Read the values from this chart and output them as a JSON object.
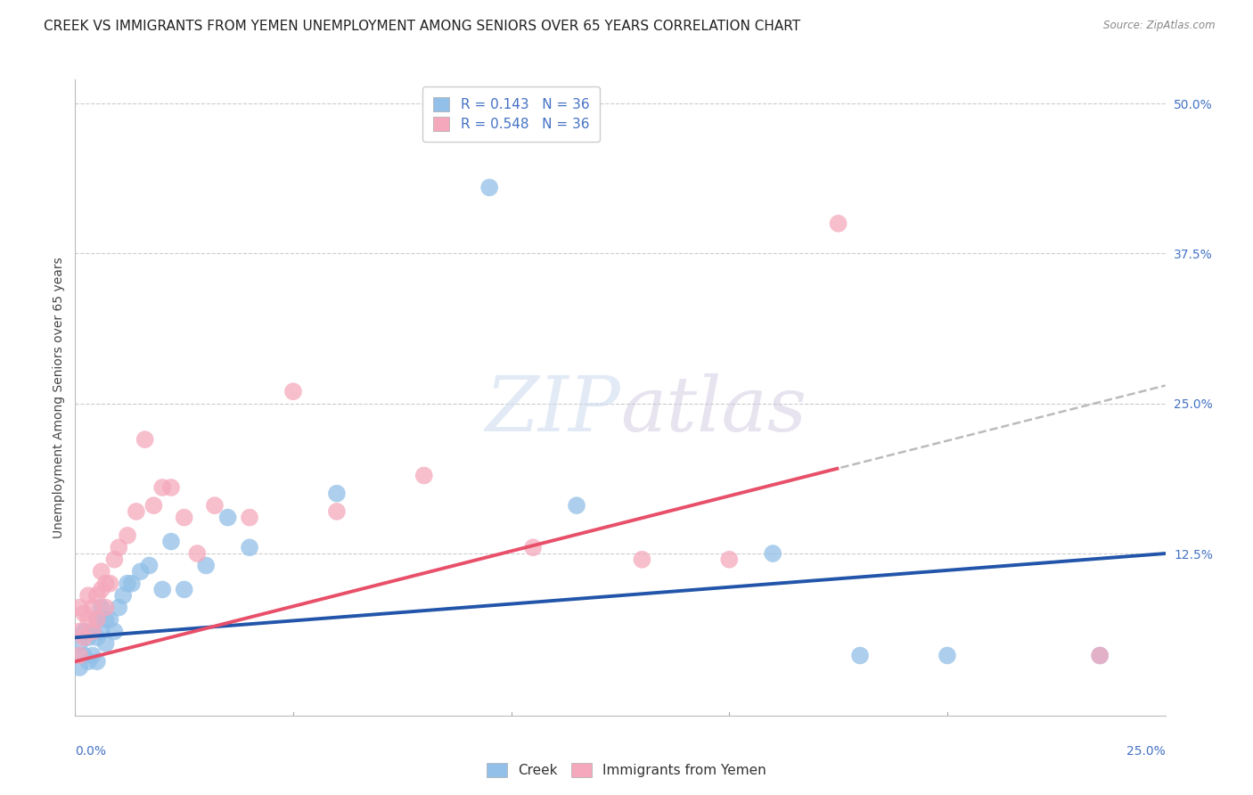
{
  "title": "CREEK VS IMMIGRANTS FROM YEMEN UNEMPLOYMENT AMONG SENIORS OVER 65 YEARS CORRELATION CHART",
  "source": "Source: ZipAtlas.com",
  "ylabel": "Unemployment Among Seniors over 65 years",
  "xlim": [
    0.0,
    0.25
  ],
  "ylim": [
    -0.01,
    0.52
  ],
  "r_creek": 0.143,
  "n_creek": 36,
  "r_yemen": 0.548,
  "n_yemen": 36,
  "creek_color": "#92C0E8",
  "yemen_color": "#F5A8BC",
  "blue_line_color": "#2255AA",
  "pink_line_color": "#E8506A",
  "dash_line_color": "#BBBBBB",
  "grid_color": "#CCCCCC",
  "background_color": "#FFFFFF",
  "title_fontsize": 11,
  "axis_fontsize": 10,
  "tick_fontsize": 10,
  "blue_intercept": 0.055,
  "blue_slope": 0.28,
  "pink_intercept": 0.035,
  "pink_slope": 0.92,
  "creek_x": [
    0.001,
    0.001,
    0.002,
    0.002,
    0.003,
    0.003,
    0.004,
    0.004,
    0.005,
    0.005,
    0.005,
    0.006,
    0.006,
    0.007,
    0.007,
    0.008,
    0.009,
    0.01,
    0.011,
    0.012,
    0.013,
    0.015,
    0.017,
    0.02,
    0.022,
    0.025,
    0.03,
    0.035,
    0.04,
    0.06,
    0.095,
    0.115,
    0.16,
    0.18,
    0.2,
    0.235
  ],
  "creek_y": [
    0.03,
    0.05,
    0.04,
    0.06,
    0.035,
    0.055,
    0.04,
    0.06,
    0.035,
    0.055,
    0.07,
    0.06,
    0.08,
    0.05,
    0.07,
    0.07,
    0.06,
    0.08,
    0.09,
    0.1,
    0.1,
    0.11,
    0.115,
    0.095,
    0.135,
    0.095,
    0.115,
    0.155,
    0.13,
    0.175,
    0.43,
    0.165,
    0.125,
    0.04,
    0.04,
    0.04
  ],
  "yemen_x": [
    0.001,
    0.001,
    0.001,
    0.002,
    0.002,
    0.003,
    0.003,
    0.004,
    0.004,
    0.005,
    0.005,
    0.006,
    0.006,
    0.007,
    0.007,
    0.008,
    0.009,
    0.01,
    0.012,
    0.014,
    0.016,
    0.018,
    0.02,
    0.022,
    0.025,
    0.028,
    0.032,
    0.04,
    0.05,
    0.06,
    0.08,
    0.105,
    0.13,
    0.15,
    0.175,
    0.235
  ],
  "yemen_y": [
    0.04,
    0.06,
    0.08,
    0.055,
    0.075,
    0.07,
    0.09,
    0.06,
    0.08,
    0.07,
    0.09,
    0.095,
    0.11,
    0.08,
    0.1,
    0.1,
    0.12,
    0.13,
    0.14,
    0.16,
    0.22,
    0.165,
    0.18,
    0.18,
    0.155,
    0.125,
    0.165,
    0.155,
    0.26,
    0.16,
    0.19,
    0.13,
    0.12,
    0.12,
    0.4,
    0.04
  ]
}
